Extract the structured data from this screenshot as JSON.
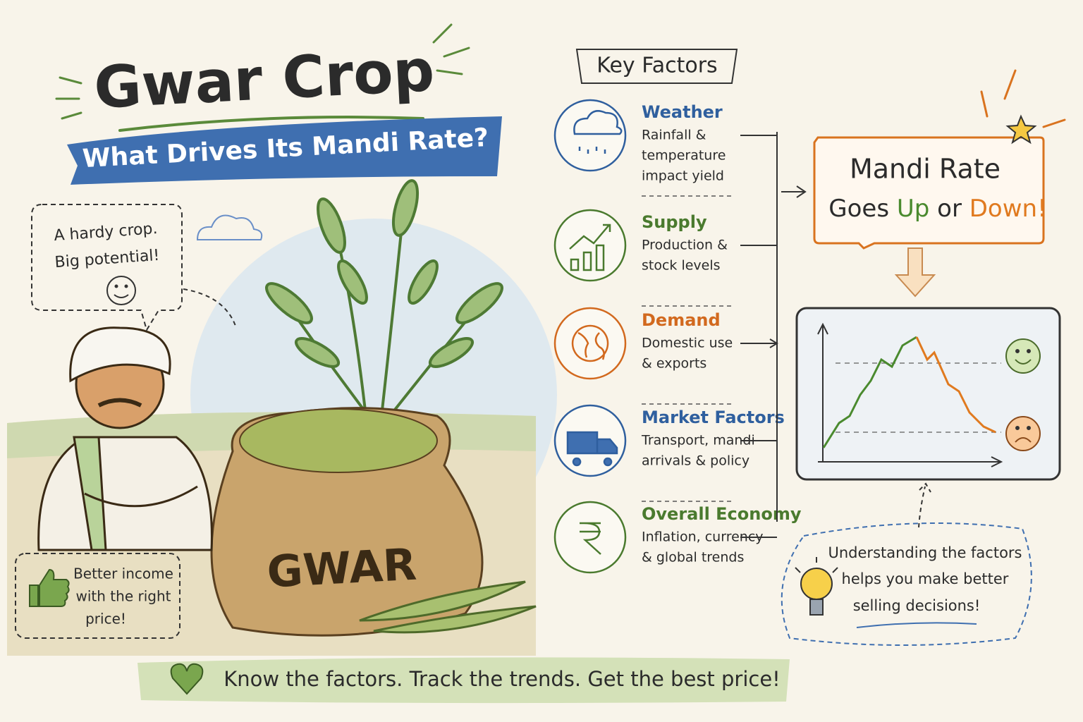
{
  "header": {
    "title": "Gwar Crop",
    "subtitle": "What Drives Its Mandi Rate?"
  },
  "speech_bubble": {
    "lines": [
      "A hardy crop.",
      "Big potential!"
    ]
  },
  "income_note": {
    "lines": [
      "Better income",
      "with the right",
      "price!"
    ]
  },
  "sack_label": "GWAR",
  "key_factors": {
    "heading": "Key Factors",
    "factors": [
      {
        "name": "Weather",
        "lines": [
          "Rainfall &",
          "temperature",
          "impact yield"
        ]
      },
      {
        "name": "Supply",
        "lines": [
          "Production &",
          "stock levels"
        ]
      },
      {
        "name": "Demand",
        "lines": [
          "Domestic use",
          "& exports"
        ]
      },
      {
        "name": "Market Factors",
        "lines": [
          "Transport, mandi",
          "arrivals & policy"
        ]
      },
      {
        "name": "Overall Economy",
        "lines": [
          "Inflation, currency",
          "& global trends"
        ]
      }
    ]
  },
  "result": {
    "line1": "Mandi Rate",
    "line2": [
      "Goes",
      "Up",
      "or",
      "Down!"
    ]
  },
  "tip": {
    "lines": [
      "Understanding the factors",
      "helps you make better",
      "selling decisions!"
    ]
  },
  "footer": "Know the factors. Track the trends. Get the best price!"
}
